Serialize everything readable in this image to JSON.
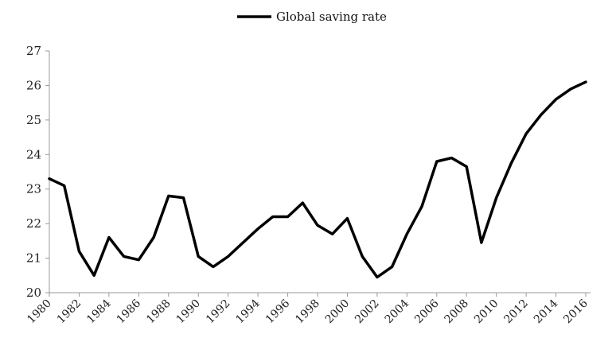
{
  "chart_data": {
    "type": "line",
    "legend": {
      "position": "top-center"
    },
    "grid": false,
    "xlim": [
      1980,
      2016
    ],
    "ylim": [
      20,
      27
    ],
    "y_ticks": [
      20,
      21,
      22,
      23,
      24,
      25,
      26,
      27
    ],
    "x_ticks": [
      1980,
      1982,
      1984,
      1986,
      1988,
      1990,
      1992,
      1994,
      1996,
      1998,
      2000,
      2002,
      2004,
      2006,
      2008,
      2010,
      2012,
      2014,
      2016
    ],
    "series": [
      {
        "name": "Global saving rate",
        "color": "#000000",
        "x": [
          1980,
          1981,
          1982,
          1983,
          1984,
          1985,
          1986,
          1987,
          1988,
          1989,
          1990,
          1991,
          1992,
          1993,
          1994,
          1995,
          1996,
          1997,
          1998,
          1999,
          2000,
          2001,
          2002,
          2003,
          2004,
          2005,
          2006,
          2007,
          2008,
          2009,
          2010,
          2011,
          2012,
          2013,
          2014,
          2015,
          2016
        ],
        "values": [
          23.3,
          23.1,
          21.2,
          20.5,
          21.6,
          21.05,
          20.95,
          21.6,
          22.8,
          22.75,
          21.05,
          20.75,
          21.05,
          21.45,
          21.85,
          22.2,
          22.2,
          22.6,
          21.95,
          21.7,
          22.15,
          21.05,
          20.45,
          20.75,
          21.7,
          22.5,
          23.8,
          23.9,
          23.65,
          21.45,
          22.75,
          23.75,
          24.6,
          25.15,
          25.6,
          25.9,
          26.1
        ]
      }
    ]
  }
}
